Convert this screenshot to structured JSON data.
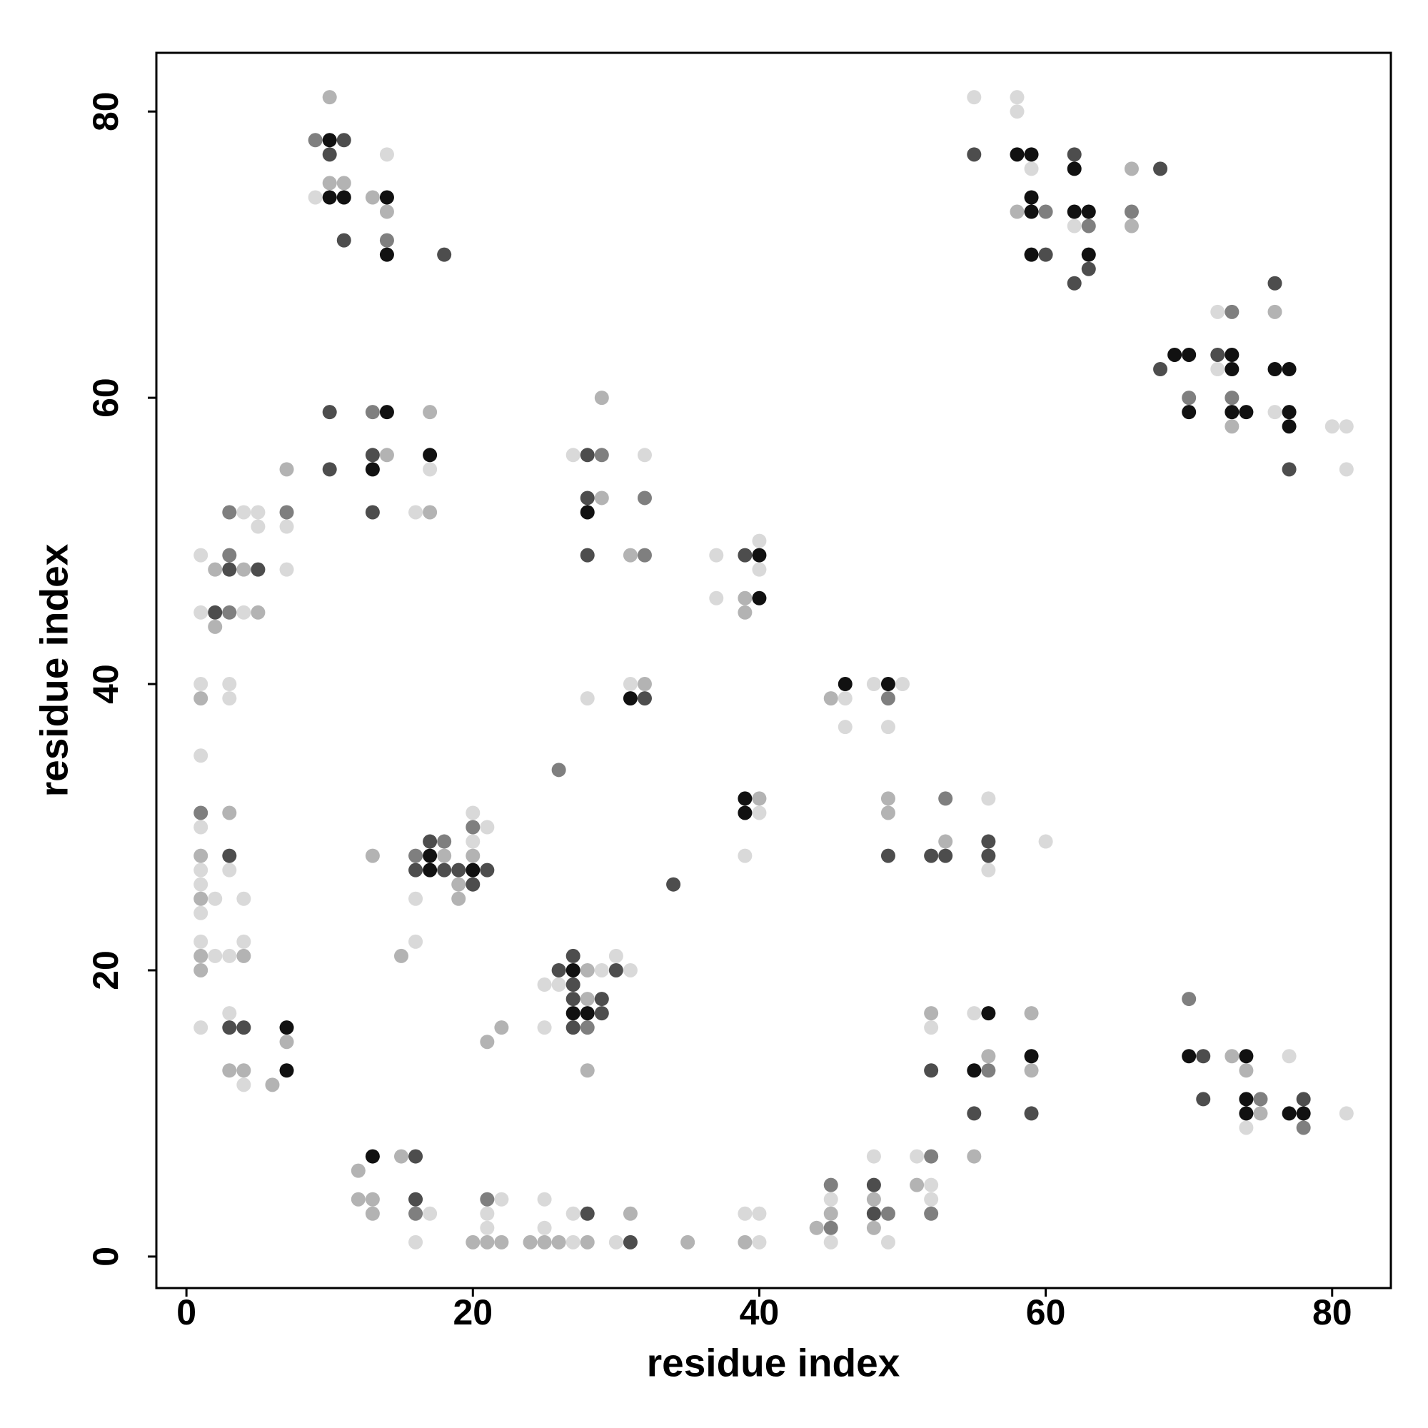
{
  "chart_data": {
    "type": "scatter",
    "xlabel": "residue index",
    "ylabel": "residue index",
    "xlim": [
      -2.1,
      84.1
    ],
    "ylim": [
      -2.2,
      84.1
    ],
    "xticks": [
      0,
      20,
      40,
      60,
      80
    ],
    "yticks": [
      0,
      20,
      40,
      60,
      80
    ],
    "grid": false,
    "series": [
      {
        "color": "#d9d9d9",
        "x": [
          9,
          14,
          16,
          17,
          7,
          7,
          4,
          5,
          5,
          1,
          1,
          4,
          1,
          3,
          3,
          1,
          1,
          1,
          3,
          1,
          2,
          4,
          1,
          1,
          4,
          2,
          3,
          1,
          3,
          4,
          16,
          20,
          21,
          20,
          16,
          29,
          30,
          31,
          25,
          26,
          25,
          27,
          32,
          28,
          31,
          37,
          40,
          40,
          37,
          40,
          39,
          46,
          48,
          50,
          46,
          49,
          56,
          60,
          56,
          55,
          52,
          17,
          16,
          22,
          21,
          21,
          25,
          25,
          27,
          27,
          30,
          39,
          40,
          40,
          45,
          45,
          48,
          49,
          51,
          52,
          52,
          55,
          58,
          58,
          59,
          62,
          72,
          72,
          76,
          80,
          81,
          81,
          77,
          81,
          74
        ],
        "y": [
          74,
          77,
          52,
          55,
          51,
          48,
          52,
          52,
          51,
          49,
          45,
          45,
          40,
          40,
          39,
          35,
          30,
          27,
          27,
          26,
          25,
          25,
          24,
          22,
          22,
          21,
          21,
          16,
          17,
          12,
          25,
          31,
          30,
          29,
          22,
          20,
          21,
          20,
          19,
          19,
          16,
          56,
          56,
          39,
          40,
          49,
          50,
          48,
          46,
          31,
          28,
          39,
          40,
          40,
          37,
          37,
          32,
          29,
          27,
          17,
          16,
          3,
          1,
          4,
          3,
          2,
          4,
          2,
          3,
          1,
          1,
          3,
          3,
          1,
          4,
          1,
          7,
          1,
          7,
          5,
          4,
          81,
          81,
          80,
          76,
          72,
          66,
          62,
          59,
          58,
          58,
          55,
          14,
          10,
          9
        ]
      },
      {
        "color": "#b3b3b3",
        "x": [
          10,
          10,
          11,
          13,
          14,
          17,
          14,
          17,
          7,
          2,
          4,
          5,
          2,
          1,
          3,
          1,
          1,
          1,
          4,
          1,
          7,
          3,
          4,
          6,
          13,
          18,
          19,
          19,
          20,
          15,
          21,
          22,
          28,
          28,
          28,
          29,
          29,
          31,
          32,
          39,
          39,
          40,
          45,
          49,
          49,
          53,
          52,
          59,
          56,
          59,
          55,
          15,
          12,
          12,
          13,
          13,
          20,
          21,
          22,
          24,
          25,
          26,
          28,
          31,
          35,
          39,
          44,
          45,
          48,
          48,
          51,
          58,
          66,
          66,
          76,
          73,
          73,
          74,
          75
        ],
        "y": [
          81,
          75,
          75,
          74,
          73,
          59,
          56,
          52,
          55,
          48,
          48,
          45,
          44,
          39,
          31,
          28,
          25,
          21,
          21,
          20,
          15,
          13,
          13,
          12,
          28,
          28,
          26,
          25,
          28,
          21,
          15,
          16,
          20,
          18,
          13,
          60,
          53,
          49,
          40,
          46,
          45,
          32,
          39,
          32,
          31,
          29,
          17,
          17,
          14,
          13,
          7,
          7,
          6,
          4,
          4,
          3,
          1,
          1,
          1,
          1,
          1,
          1,
          1,
          3,
          1,
          1,
          2,
          3,
          4,
          2,
          5,
          73,
          76,
          72,
          66,
          58,
          14,
          13,
          10
        ]
      },
      {
        "color": "#7f7f7f",
        "x": [
          9,
          14,
          13,
          7,
          3,
          3,
          3,
          1,
          16,
          18,
          20,
          26,
          28,
          29,
          32,
          32,
          49,
          53,
          56,
          16,
          21,
          45,
          45,
          49,
          52,
          52,
          60,
          63,
          66,
          73,
          70,
          73,
          70,
          75,
          78
        ],
        "y": [
          78,
          71,
          59,
          52,
          52,
          49,
          45,
          31,
          28,
          29,
          30,
          34,
          16,
          56,
          53,
          49,
          39,
          32,
          13,
          3,
          4,
          5,
          2,
          3,
          7,
          3,
          73,
          72,
          73,
          66,
          60,
          60,
          18,
          11,
          9
        ]
      },
      {
        "color": "#4d4d4d",
        "x": [
          11,
          10,
          11,
          18,
          10,
          10,
          13,
          13,
          3,
          5,
          2,
          3,
          3,
          4,
          17,
          16,
          18,
          19,
          21,
          20,
          26,
          27,
          30,
          27,
          27,
          29,
          29,
          27,
          28,
          28,
          28,
          32,
          39,
          34,
          56,
          49,
          52,
          53,
          56,
          52,
          55,
          59,
          16,
          16,
          28,
          31,
          48,
          48,
          55,
          62,
          68,
          60,
          63,
          62,
          76,
          72,
          68,
          77,
          71,
          71,
          78
        ],
        "y": [
          78,
          77,
          71,
          70,
          59,
          55,
          56,
          52,
          48,
          48,
          45,
          28,
          16,
          16,
          29,
          27,
          27,
          27,
          27,
          26,
          20,
          21,
          20,
          19,
          18,
          18,
          17,
          16,
          56,
          53,
          49,
          39,
          49,
          26,
          29,
          28,
          28,
          28,
          28,
          13,
          10,
          10,
          7,
          4,
          3,
          1,
          5,
          3,
          77,
          77,
          76,
          70,
          69,
          68,
          68,
          63,
          62,
          55,
          14,
          11,
          11
        ]
      },
      {
        "color": "#111111",
        "x": [
          10,
          10,
          11,
          14,
          14,
          14,
          13,
          17,
          7,
          7,
          17,
          17,
          20,
          27,
          27,
          28,
          28,
          31,
          40,
          40,
          39,
          39,
          46,
          49,
          56,
          59,
          55,
          13,
          58,
          59,
          62,
          59,
          59,
          62,
          63,
          59,
          63,
          69,
          70,
          73,
          73,
          76,
          77,
          70,
          73,
          74,
          77,
          77,
          70,
          74,
          74,
          74,
          77,
          78
        ],
        "y": [
          78,
          74,
          74,
          74,
          70,
          59,
          55,
          56,
          16,
          13,
          28,
          27,
          27,
          20,
          17,
          17,
          52,
          39,
          49,
          46,
          32,
          31,
          40,
          40,
          17,
          14,
          13,
          7,
          77,
          77,
          76,
          74,
          73,
          73,
          73,
          70,
          70,
          63,
          63,
          63,
          62,
          62,
          62,
          59,
          59,
          59,
          59,
          58,
          14,
          14,
          11,
          10,
          10,
          10
        ]
      }
    ]
  }
}
